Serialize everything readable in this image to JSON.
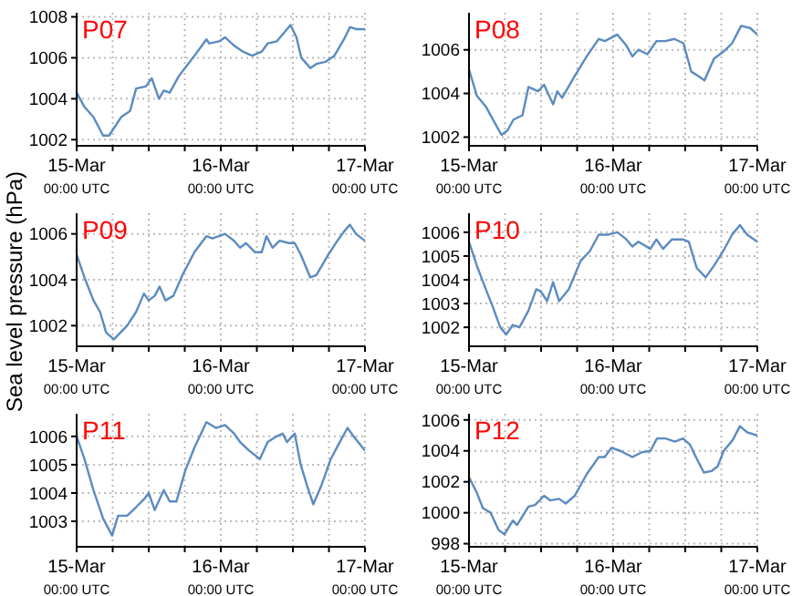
{
  "chart_data": [
    {
      "type": "line",
      "title": "P07",
      "grid": true,
      "marker": "none",
      "line_style": "solid",
      "xlim": [
        "--03-15T00:00",
        "--03-17T00:00"
      ],
      "xticks": [
        {
          "value": "--03-15T00:00",
          "label": "15-Mar\n00:00 UTC"
        },
        {
          "value": "--03-15T06:00",
          "label": null
        },
        {
          "value": "--03-15T12:00",
          "label": null
        },
        {
          "value": "--03-15T18:00",
          "label": null
        },
        {
          "value": "--03-16T00:00",
          "label": "16-Mar\n00:00 UTC"
        },
        {
          "value": "--03-16T06:00",
          "label": null
        },
        {
          "value": "--03-16T12:00",
          "label": null
        },
        {
          "value": "--03-16T18:00",
          "label": null
        },
        {
          "value": "--03-17T00:00",
          "label": "17-Mar\n00:00 UTC"
        }
      ],
      "ylim": [
        1001.7,
        1008.2
      ],
      "yticks": [
        1002,
        1004,
        1006,
        1008
      ],
      "series": [
        {
          "color": "#5b8bbf",
          "x": [
            "--03-15T00:00",
            "--03-15T01:18",
            "--03-15T02:48",
            "--03-15T04:24",
            "--03-15T05:24",
            "--03-15T07:24",
            "--03-15T08:54",
            "--03-15T09:54",
            "--03-15T11:30",
            "--03-15T12:30",
            "--03-15T13:42",
            "--03-15T14:30",
            "--03-15T15:30",
            "--03-15T17:00",
            "--03-15T19:36",
            "--03-15T21:36",
            "--03-15T22:06",
            "--03-15T23:42",
            "--03-16T00:42",
            "--03-16T02:12",
            "--03-16T03:42",
            "--03-16T05:12",
            "--03-16T06:48",
            "--03-16T07:48",
            "--03-16T09:18",
            "--03-16T11:36",
            "--03-16T12:36",
            "--03-16T13:24",
            "--03-16T14:54",
            "--03-16T15:54",
            "--03-16T17:24",
            "--03-16T18:54",
            "--03-16T20:30",
            "--03-16T21:30",
            "--03-16T22:30",
            "--03-17T00:00"
          ],
          "values": [
            1004.3,
            1003.6,
            1003.1,
            1002.2,
            1002.2,
            1003.1,
            1003.4,
            1004.5,
            1004.6,
            1005.0,
            1004.0,
            1004.4,
            1004.3,
            1005.1,
            1006.1,
            1006.9,
            1006.7,
            1006.8,
            1007.0,
            1006.6,
            1006.3,
            1006.1,
            1006.3,
            1006.7,
            1006.8,
            1007.6,
            1007.0,
            1006.0,
            1005.5,
            1005.7,
            1005.8,
            1006.1,
            1006.9,
            1007.5,
            1007.4,
            1007.4
          ]
        }
      ]
    },
    {
      "type": "line",
      "title": "P08",
      "grid": true,
      "marker": "none",
      "line_style": "solid",
      "xlim": [
        "--03-15T00:00",
        "--03-17T00:00"
      ],
      "xticks": [
        {
          "value": "--03-15T00:00",
          "label": "15-Mar\n00:00 UTC"
        },
        {
          "value": "--03-15T06:00",
          "label": null
        },
        {
          "value": "--03-15T12:00",
          "label": null
        },
        {
          "value": "--03-15T18:00",
          "label": null
        },
        {
          "value": "--03-16T00:00",
          "label": "16-Mar\n00:00 UTC"
        },
        {
          "value": "--03-16T06:00",
          "label": null
        },
        {
          "value": "--03-16T12:00",
          "label": null
        },
        {
          "value": "--03-16T18:00",
          "label": null
        },
        {
          "value": "--03-17T00:00",
          "label": "17-Mar\n00:00 UTC"
        }
      ],
      "ylim": [
        1001.6,
        1007.7
      ],
      "yticks": [
        1002,
        1004,
        1006
      ],
      "series": [
        {
          "color": "#5b8bbf",
          "x": [
            "--03-15T00:00",
            "--03-15T01:18",
            "--03-15T02:48",
            "--03-15T04:24",
            "--03-15T05:24",
            "--03-15T06:24",
            "--03-15T07:24",
            "--03-15T08:54",
            "--03-15T09:54",
            "--03-15T11:30",
            "--03-15T12:30",
            "--03-15T14:00",
            "--03-15T14:42",
            "--03-15T15:30",
            "--03-15T17:36",
            "--03-15T19:36",
            "--03-15T21:36",
            "--03-15T22:36",
            "--03-16T00:42",
            "--03-16T02:12",
            "--03-16T03:12",
            "--03-16T04:12",
            "--03-16T05:42",
            "--03-16T07:12",
            "--03-16T08:42",
            "--03-16T10:12",
            "--03-16T11:42",
            "--03-16T13:00",
            "--03-16T14:12",
            "--03-16T15:12",
            "--03-16T16:48",
            "--03-16T18:18",
            "--03-16T19:48",
            "--03-16T21:18",
            "--03-16T22:48",
            "--03-17T00:00"
          ],
          "values": [
            1005.1,
            1003.9,
            1003.4,
            1002.6,
            1002.1,
            1002.3,
            1002.8,
            1003.0,
            1004.3,
            1004.1,
            1004.4,
            1003.5,
            1004.1,
            1003.8,
            1004.8,
            1005.7,
            1006.5,
            1006.4,
            1006.7,
            1006.2,
            1005.7,
            1006.0,
            1005.8,
            1006.4,
            1006.4,
            1006.5,
            1006.3,
            1005.0,
            1004.8,
            1004.6,
            1005.6,
            1005.9,
            1006.3,
            1007.1,
            1007.0,
            1006.7
          ]
        }
      ]
    },
    {
      "type": "line",
      "title": "P09",
      "ylabel": "Sea level pressure (hPa)",
      "grid": true,
      "marker": "none",
      "line_style": "solid",
      "xlim": [
        "--03-15T00:00",
        "--03-17T00:00"
      ],
      "xticks": [
        {
          "value": "--03-15T00:00",
          "label": "15-Mar\n00:00 UTC"
        },
        {
          "value": "--03-15T06:00",
          "label": null
        },
        {
          "value": "--03-15T12:00",
          "label": null
        },
        {
          "value": "--03-15T18:00",
          "label": null
        },
        {
          "value": "--03-16T00:00",
          "label": "16-Mar\n00:00 UTC"
        },
        {
          "value": "--03-16T06:00",
          "label": null
        },
        {
          "value": "--03-16T12:00",
          "label": null
        },
        {
          "value": "--03-16T18:00",
          "label": null
        },
        {
          "value": "--03-17T00:00",
          "label": "17-Mar\n00:00 UTC"
        }
      ],
      "ylim": [
        1001.1,
        1006.9
      ],
      "yticks": [
        1002,
        1004,
        1006
      ],
      "series": [
        {
          "color": "#5b8bbf",
          "x": [
            "--03-15T00:00",
            "--03-15T01:18",
            "--03-15T02:48",
            "--03-15T03:54",
            "--03-15T04:54",
            "--03-15T06:12",
            "--03-15T07:18",
            "--03-15T08:24",
            "--03-15T09:54",
            "--03-15T11:12",
            "--03-15T12:00",
            "--03-15T13:00",
            "--03-15T13:48",
            "--03-15T14:48",
            "--03-15T16:06",
            "--03-15T17:36",
            "--03-15T19:36",
            "--03-15T21:36",
            "--03-15T22:36",
            "--03-16T00:42",
            "--03-16T02:12",
            "--03-16T03:12",
            "--03-16T04:12",
            "--03-16T05:42",
            "--03-16T06:48",
            "--03-16T07:36",
            "--03-16T08:36",
            "--03-16T09:48",
            "--03-16T11:18",
            "--03-16T12:18",
            "--03-16T13:18",
            "--03-16T14:54",
            "--03-16T15:54",
            "--03-16T17:54",
            "--03-16T19:24",
            "--03-16T20:30",
            "--03-16T21:30",
            "--03-16T22:30",
            "--03-17T00:00"
          ],
          "values": [
            1005.1,
            1004.1,
            1003.1,
            1002.6,
            1001.7,
            1001.4,
            1001.7,
            1002.0,
            1002.6,
            1003.4,
            1003.1,
            1003.3,
            1003.7,
            1003.1,
            1003.3,
            1004.2,
            1005.2,
            1005.9,
            1005.8,
            1006.0,
            1005.7,
            1005.4,
            1005.6,
            1005.2,
            1005.2,
            1005.9,
            1005.4,
            1005.7,
            1005.6,
            1005.6,
            1005.1,
            1004.1,
            1004.2,
            1005.1,
            1005.7,
            1006.1,
            1006.4,
            1006.0,
            1005.7
          ]
        }
      ]
    },
    {
      "type": "line",
      "title": "P10",
      "grid": true,
      "marker": "none",
      "line_style": "solid",
      "xlim": [
        "--03-15T00:00",
        "--03-17T00:00"
      ],
      "xticks": [
        {
          "value": "--03-15T00:00",
          "label": "15-Mar\n00:00 UTC"
        },
        {
          "value": "--03-15T06:00",
          "label": null
        },
        {
          "value": "--03-15T12:00",
          "label": null
        },
        {
          "value": "--03-15T18:00",
          "label": null
        },
        {
          "value": "--03-16T00:00",
          "label": "16-Mar\n00:00 UTC"
        },
        {
          "value": "--03-16T06:00",
          "label": null
        },
        {
          "value": "--03-16T12:00",
          "label": null
        },
        {
          "value": "--03-16T18:00",
          "label": null
        },
        {
          "value": "--03-17T00:00",
          "label": "17-Mar\n00:00 UTC"
        }
      ],
      "ylim": [
        1001.2,
        1006.8
      ],
      "yticks": [
        1002,
        1003,
        1004,
        1005,
        1006
      ],
      "series": [
        {
          "color": "#5b8bbf",
          "x": [
            "--03-15T00:00",
            "--03-15T01:18",
            "--03-15T02:48",
            "--03-15T03:54",
            "--03-15T05:12",
            "--03-15T06:12",
            "--03-15T07:18",
            "--03-15T08:24",
            "--03-15T09:54",
            "--03-15T11:12",
            "--03-15T12:00",
            "--03-15T13:00",
            "--03-15T14:00",
            "--03-15T15:00",
            "--03-15T16:36",
            "--03-15T18:36",
            "--03-15T20:06",
            "--03-15T21:36",
            "--03-15T23:12",
            "--03-16T00:42",
            "--03-16T02:12",
            "--03-16T03:12",
            "--03-16T04:12",
            "--03-16T06:12",
            "--03-16T07:12",
            "--03-16T08:18",
            "--03-16T09:48",
            "--03-16T11:36",
            "--03-16T12:36",
            "--03-16T13:54",
            "--03-16T15:24",
            "--03-16T16:48",
            "--03-16T18:18",
            "--03-16T19:48",
            "--03-16T21:06",
            "--03-16T22:18",
            "--03-17T00:00"
          ],
          "values": [
            1005.6,
            1004.6,
            1003.6,
            1002.9,
            1002.0,
            1001.7,
            1002.1,
            1002.0,
            1002.7,
            1003.6,
            1003.5,
            1003.1,
            1003.9,
            1003.1,
            1003.6,
            1004.8,
            1005.2,
            1005.9,
            1005.9,
            1006.0,
            1005.7,
            1005.4,
            1005.6,
            1005.3,
            1005.7,
            1005.3,
            1005.7,
            1005.7,
            1005.6,
            1004.5,
            1004.1,
            1004.6,
            1005.2,
            1005.9,
            1006.3,
            1005.9,
            1005.6
          ]
        }
      ]
    },
    {
      "type": "line",
      "title": "P11",
      "grid": true,
      "marker": "none",
      "line_style": "solid",
      "xlim": [
        "--03-15T00:00",
        "--03-17T00:00"
      ],
      "xticks": [
        {
          "value": "--03-15T00:00",
          "label": "15-Mar\n00:00 UTC"
        },
        {
          "value": "--03-15T06:00",
          "label": null
        },
        {
          "value": "--03-15T12:00",
          "label": null
        },
        {
          "value": "--03-15T18:00",
          "label": null
        },
        {
          "value": "--03-16T00:00",
          "label": "16-Mar\n00:00 UTC"
        },
        {
          "value": "--03-16T06:00",
          "label": null
        },
        {
          "value": "--03-16T12:00",
          "label": null
        },
        {
          "value": "--03-16T18:00",
          "label": null
        },
        {
          "value": "--03-17T00:00",
          "label": "17-Mar\n00:00 UTC"
        }
      ],
      "ylim": [
        1002.1,
        1006.8
      ],
      "yticks": [
        1003,
        1004,
        1005,
        1006
      ],
      "series": [
        {
          "color": "#5b8bbf",
          "x": [
            "--03-15T00:00",
            "--03-15T01:18",
            "--03-15T02:48",
            "--03-15T04:24",
            "--03-15T05:54",
            "--03-15T06:54",
            "--03-15T08:24",
            "--03-15T09:54",
            "--03-15T11:18",
            "--03-15T12:00",
            "--03-15T13:00",
            "--03-15T14:30",
            "--03-15T15:30",
            "--03-15T16:36",
            "--03-15T18:06",
            "--03-15T19:36",
            "--03-15T21:36",
            "--03-15T23:12",
            "--03-16T00:42",
            "--03-16T02:12",
            "--03-16T03:12",
            "--03-16T04:42",
            "--03-16T06:30",
            "--03-16T07:48",
            "--03-16T09:18",
            "--03-16T10:18",
            "--03-16T11:00",
            "--03-16T12:18",
            "--03-16T13:18",
            "--03-16T14:18",
            "--03-16T15:24",
            "--03-16T16:48",
            "--03-16T18:18",
            "--03-16T19:48",
            "--03-16T21:06",
            "--03-16T22:06",
            "--03-17T00:00"
          ],
          "values": [
            1006.0,
            1005.2,
            1004.1,
            1003.1,
            1002.5,
            1003.2,
            1003.2,
            1003.5,
            1003.8,
            1004.0,
            1003.4,
            1004.1,
            1003.7,
            1003.7,
            1004.8,
            1005.6,
            1006.5,
            1006.3,
            1006.4,
            1006.1,
            1005.8,
            1005.5,
            1005.2,
            1005.8,
            1006.0,
            1006.1,
            1005.8,
            1006.1,
            1005.0,
            1004.3,
            1003.6,
            1004.3,
            1005.2,
            1005.8,
            1006.3,
            1006.0,
            1005.5
          ]
        }
      ]
    },
    {
      "type": "line",
      "title": "P12",
      "grid": true,
      "marker": "none",
      "line_style": "solid",
      "xlim": [
        "--03-15T00:00",
        "--03-17T00:00"
      ],
      "xticks": [
        {
          "value": "--03-15T00:00",
          "label": "15-Mar\n00:00 UTC"
        },
        {
          "value": "--03-15T06:00",
          "label": null
        },
        {
          "value": "--03-15T12:00",
          "label": null
        },
        {
          "value": "--03-15T18:00",
          "label": null
        },
        {
          "value": "--03-16T00:00",
          "label": "16-Mar\n00:00 UTC"
        },
        {
          "value": "--03-16T06:00",
          "label": null
        },
        {
          "value": "--03-16T12:00",
          "label": null
        },
        {
          "value": "--03-16T18:00",
          "label": null
        },
        {
          "value": "--03-17T00:00",
          "label": "17-Mar\n00:00 UTC"
        }
      ],
      "ylim": [
        997.8,
        1006.4
      ],
      "yticks": [
        998,
        1000,
        1002,
        1004,
        1006
      ],
      "series": [
        {
          "color": "#5b8bbf",
          "x": [
            "--03-15T00:00",
            "--03-15T01:18",
            "--03-15T02:18",
            "--03-15T03:36",
            "--03-15T04:54",
            "--03-15T05:54",
            "--03-15T07:18",
            "--03-15T08:00",
            "--03-15T09:54",
            "--03-15T11:00",
            "--03-15T12:30",
            "--03-15T13:30",
            "--03-15T15:00",
            "--03-15T16:06",
            "--03-15T17:36",
            "--03-15T19:36",
            "--03-15T21:36",
            "--03-15T22:36",
            "--03-15T23:42",
            "--03-16T01:12",
            "--03-16T03:12",
            "--03-16T04:42",
            "--03-16T06:12",
            "--03-16T07:18",
            "--03-16T08:42",
            "--03-16T10:18",
            "--03-16T11:36",
            "--03-16T12:48",
            "--03-16T13:54",
            "--03-16T15:06",
            "--03-16T16:24",
            "--03-16T17:24",
            "--03-16T18:24",
            "--03-16T19:54",
            "--03-16T21:06",
            "--03-16T22:18",
            "--03-17T00:00"
          ],
          "values": [
            1002.3,
            1001.3,
            1000.3,
            1000.0,
            998.9,
            998.6,
            999.5,
            999.2,
            1000.4,
            1000.5,
            1001.1,
            1000.8,
            1000.9,
            1000.6,
            1001.1,
            1002.5,
            1003.6,
            1003.6,
            1004.2,
            1004.0,
            1003.6,
            1003.9,
            1004.0,
            1004.8,
            1004.8,
            1004.6,
            1004.8,
            1004.4,
            1003.5,
            1002.6,
            1002.7,
            1003.0,
            1004.0,
            1004.7,
            1005.6,
            1005.2,
            1005.0
          ]
        }
      ]
    }
  ]
}
